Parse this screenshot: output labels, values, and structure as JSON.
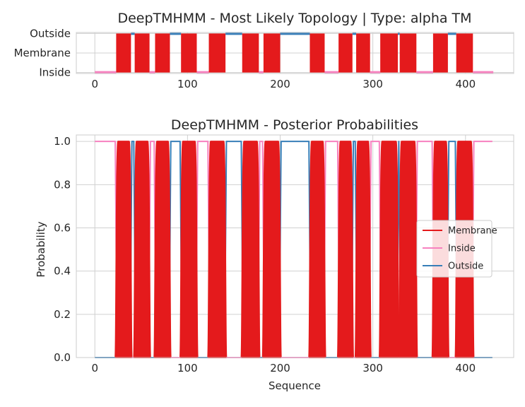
{
  "colors": {
    "membrane": "#e41a1c",
    "inside": "#f781bf",
    "outside": "#377eb8",
    "grid": "#d0d0d0",
    "spine": "#cccccc",
    "text": "#262626"
  },
  "chart_data": [
    {
      "type": "line",
      "title": "DeepTMHMM - Most Likely Topology | Type: alpha TM",
      "xlabel": "",
      "ylabel": "",
      "xlim": [
        -20,
        452
      ],
      "ylim": [
        -0.05,
        2.05
      ],
      "grid": true,
      "xticks": [
        0,
        100,
        200,
        300,
        400
      ],
      "xtick_labels": [
        "0",
        "100",
        "200",
        "300",
        "400"
      ],
      "y_categories": [
        "Inside",
        "Membrane",
        "Outside"
      ],
      "y_category_values": [
        0,
        1,
        2
      ],
      "sequence_length": 430,
      "segments": [
        {
          "state": "Inside",
          "start": 0,
          "end": 23
        },
        {
          "state": "Membrane",
          "start": 23,
          "end": 39
        },
        {
          "state": "Outside",
          "start": 39,
          "end": 43
        },
        {
          "state": "Membrane",
          "start": 43,
          "end": 59
        },
        {
          "state": "Inside",
          "start": 59,
          "end": 65
        },
        {
          "state": "Membrane",
          "start": 65,
          "end": 81
        },
        {
          "state": "Outside",
          "start": 81,
          "end": 93
        },
        {
          "state": "Membrane",
          "start": 93,
          "end": 110
        },
        {
          "state": "Inside",
          "start": 110,
          "end": 123
        },
        {
          "state": "Membrane",
          "start": 123,
          "end": 141
        },
        {
          "state": "Outside",
          "start": 141,
          "end": 159
        },
        {
          "state": "Membrane",
          "start": 159,
          "end": 177
        },
        {
          "state": "Inside",
          "start": 177,
          "end": 182
        },
        {
          "state": "Membrane",
          "start": 182,
          "end": 200
        },
        {
          "state": "Outside",
          "start": 200,
          "end": 232
        },
        {
          "state": "Membrane",
          "start": 232,
          "end": 248
        },
        {
          "state": "Inside",
          "start": 248,
          "end": 263
        },
        {
          "state": "Membrane",
          "start": 263,
          "end": 278
        },
        {
          "state": "Outside",
          "start": 278,
          "end": 282
        },
        {
          "state": "Membrane",
          "start": 282,
          "end": 297
        },
        {
          "state": "Inside",
          "start": 297,
          "end": 308
        },
        {
          "state": "Membrane",
          "start": 308,
          "end": 327
        },
        {
          "state": "Outside",
          "start": 327,
          "end": 329
        },
        {
          "state": "Membrane",
          "start": 329,
          "end": 347
        },
        {
          "state": "Inside",
          "start": 347,
          "end": 365
        },
        {
          "state": "Membrane",
          "start": 365,
          "end": 381
        },
        {
          "state": "Outside",
          "start": 381,
          "end": 390
        },
        {
          "state": "Membrane",
          "start": 390,
          "end": 408
        },
        {
          "state": "Inside",
          "start": 408,
          "end": 430
        }
      ]
    },
    {
      "type": "line",
      "title": "DeepTMHMM - Posterior Probabilities",
      "xlabel": "Sequence",
      "ylabel": "Probability",
      "xlim": [
        -20,
        452
      ],
      "ylim": [
        0,
        1.03
      ],
      "grid": true,
      "xticks": [
        0,
        100,
        200,
        300,
        400
      ],
      "xtick_labels": [
        "0",
        "100",
        "200",
        "300",
        "400"
      ],
      "yticks": [
        0.0,
        0.2,
        0.4,
        0.6,
        0.8,
        1.0
      ],
      "ytick_labels": [
        "0.0",
        "0.2",
        "0.4",
        "0.6",
        "0.8",
        "1.0"
      ],
      "legend_position": "center-right",
      "sequence_length": 430,
      "series": [
        {
          "name": "Membrane",
          "color_key": "membrane"
        },
        {
          "name": "Inside",
          "color_key": "inside"
        },
        {
          "name": "Outside",
          "color_key": "outside"
        }
      ]
    }
  ]
}
